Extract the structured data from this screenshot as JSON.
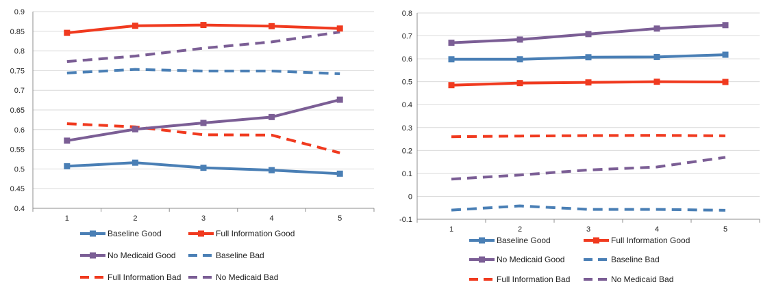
{
  "colors": {
    "baseline": "#4a7fb5",
    "full_information": "#f03a1f",
    "no_medicaid": "#7b5e95",
    "grid": "#d9d9d9",
    "axis": "#8c8c8c"
  },
  "legend_labels": [
    "Baseline Good",
    "Full Information Good",
    "No Medicaid Good",
    "Baseline Bad",
    "Full Information Bad",
    "No Medicaid Bad"
  ],
  "chart_data": [
    {
      "type": "line",
      "x": [
        1,
        2,
        3,
        4,
        5
      ],
      "ylim": [
        0.4,
        0.9
      ],
      "y_ticks": [
        "0.4",
        "0.45",
        "0.5",
        "0.55",
        "0.6",
        "0.65",
        "0.7",
        "0.75",
        "0.8",
        "0.85",
        "0.9"
      ],
      "x_ticks": [
        "1",
        "2",
        "3",
        "4",
        "5"
      ],
      "grid": true,
      "legend_position": "bottom",
      "series": [
        {
          "name": "Baseline Good",
          "color": "#4a7fb5",
          "style": "solid",
          "marker": "square",
          "values": [
            0.507,
            0.516,
            0.503,
            0.497,
            0.488
          ]
        },
        {
          "name": "Full Information Good",
          "color": "#f03a1f",
          "style": "solid",
          "marker": "square",
          "values": [
            0.846,
            0.864,
            0.866,
            0.863,
            0.857
          ]
        },
        {
          "name": "No Medicaid Good",
          "color": "#7b5e95",
          "style": "solid",
          "marker": "square",
          "values": [
            0.572,
            0.601,
            0.617,
            0.632,
            0.676
          ]
        },
        {
          "name": "Baseline Bad",
          "color": "#4a7fb5",
          "style": "dashed",
          "marker": "none",
          "values": [
            0.744,
            0.753,
            0.749,
            0.749,
            0.742
          ]
        },
        {
          "name": "Full Information Bad",
          "color": "#f03a1f",
          "style": "dashed",
          "marker": "none",
          "values": [
            0.615,
            0.607,
            0.587,
            0.586,
            0.541
          ]
        },
        {
          "name": "No Medicaid Bad",
          "color": "#7b5e95",
          "style": "dashed",
          "marker": "none",
          "values": [
            0.773,
            0.787,
            0.807,
            0.823,
            0.848
          ]
        }
      ]
    },
    {
      "type": "line",
      "x": [
        1,
        2,
        3,
        4,
        5
      ],
      "ylim": [
        -0.1,
        0.8
      ],
      "y_ticks": [
        "-0.1",
        "0",
        "0.1",
        "0.2",
        "0.3",
        "0.4",
        "0.5",
        "0.6",
        "0.7",
        "0.8"
      ],
      "x_ticks": [
        "1",
        "2",
        "3",
        "4",
        "5"
      ],
      "grid": true,
      "legend_position": "bottom",
      "series": [
        {
          "name": "Baseline Good",
          "color": "#4a7fb5",
          "style": "solid",
          "marker": "square",
          "values": [
            0.598,
            0.598,
            0.607,
            0.608,
            0.618
          ]
        },
        {
          "name": "Full Information Good",
          "color": "#f03a1f",
          "style": "solid",
          "marker": "square",
          "values": [
            0.485,
            0.494,
            0.497,
            0.5,
            0.499
          ]
        },
        {
          "name": "No Medicaid Good",
          "color": "#7b5e95",
          "style": "solid",
          "marker": "square",
          "values": [
            0.67,
            0.684,
            0.708,
            0.732,
            0.747
          ]
        },
        {
          "name": "Baseline Bad",
          "color": "#4a7fb5",
          "style": "dashed",
          "marker": "none",
          "values": [
            -0.06,
            -0.042,
            -0.057,
            -0.057,
            -0.061
          ]
        },
        {
          "name": "Full Information Bad",
          "color": "#f03a1f",
          "style": "dashed",
          "marker": "none",
          "values": [
            0.26,
            0.263,
            0.265,
            0.266,
            0.264
          ]
        },
        {
          "name": "No Medicaid Bad",
          "color": "#7b5e95",
          "style": "dashed",
          "marker": "none",
          "values": [
            0.075,
            0.093,
            0.115,
            0.128,
            0.17
          ]
        }
      ]
    }
  ]
}
